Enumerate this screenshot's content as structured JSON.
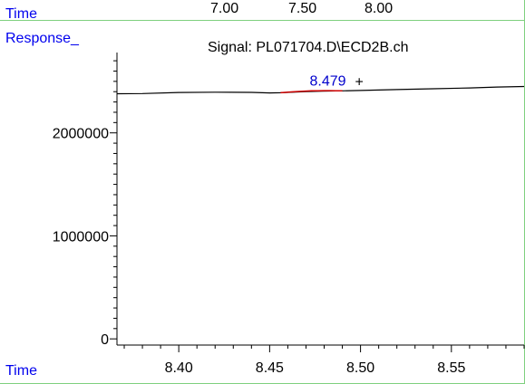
{
  "overview": {
    "label": "Time",
    "ticks": [
      "7.00",
      "7.50",
      "8.00"
    ]
  },
  "signal": {
    "y_label": "Response_",
    "title": "Signal: PL071704.D\\ECD2B.ch"
  },
  "chart_data": {
    "type": "line",
    "xlabel": "Time",
    "ylabel": "Response_",
    "xlim": [
      8.366,
      8.59
    ],
    "ylim": [
      -60000,
      2780000
    ],
    "x_ticks": [
      "8.40",
      "8.45",
      "8.50",
      "8.55"
    ],
    "x_tick_values": [
      8.4,
      8.45,
      8.5,
      8.55
    ],
    "y_ticks": [
      "0",
      "1000000",
      "2000000"
    ],
    "y_tick_values": [
      0,
      1000000,
      2000000
    ],
    "series": [
      {
        "x": [
          8.366,
          8.38,
          8.4,
          8.42,
          8.44,
          8.45,
          8.456,
          8.47,
          8.479,
          8.49,
          8.5,
          8.52,
          8.54,
          8.56,
          8.575,
          8.59
        ],
        "y": [
          2380000,
          2382000,
          2392000,
          2395000,
          2393000,
          2388000,
          2390000,
          2400000,
          2405000,
          2408000,
          2412000,
          2420000,
          2428000,
          2436000,
          2445000,
          2450000
        ],
        "color": "#000000"
      }
    ],
    "peak": {
      "label": "8.479",
      "x": 8.479,
      "y": 2405000,
      "x_start": 8.456,
      "x_end": 8.49,
      "label_color": "#0000cc",
      "peak_color": "#cc0000",
      "marker": "+"
    },
    "grid": false
  }
}
